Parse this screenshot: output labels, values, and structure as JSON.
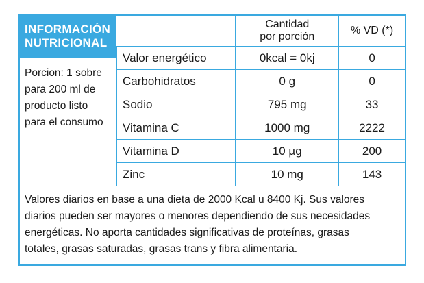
{
  "title": {
    "line1": "INFORMACIÓN",
    "line2": "NUTRICIONAL"
  },
  "portion": {
    "line1": "Porcion: 1 sobre",
    "line2": "para 200 ml de",
    "line3": "producto listo",
    "line4": "para el consumo"
  },
  "columns": {
    "quantity_line1": "Cantidad",
    "quantity_line2": "por porción",
    "vd": "% VD (*)"
  },
  "rows": [
    {
      "name": "Valor energético",
      "quantity": "0kcal = 0kj",
      "vd": "0"
    },
    {
      "name": "Carbohidratos",
      "quantity": "0 g",
      "vd": "0"
    },
    {
      "name": "Sodio",
      "quantity": "795 mg",
      "vd": "33"
    },
    {
      "name": "Vitamina C",
      "quantity": "1000 mg",
      "vd": "2222"
    },
    {
      "name": "Vitamina D",
      "quantity": "10 µg",
      "vd": "200"
    },
    {
      "name": "Zinc",
      "quantity": "10 mg",
      "vd": "143"
    }
  ],
  "footnote": {
    "line1": "Valores diarios en base a una dieta de 2000 Kcal u 8400 Kj. Sus valores",
    "line2": "diarios pueden ser mayores o menores dependiendo de sus necesidades",
    "line3": "energéticas. No aporta cantidades significativas de proteínas, grasas",
    "line4": "totales, grasas saturadas, grasas trans y fibra alimentaria."
  },
  "colors": {
    "accent": "#3aa9e0",
    "text": "#1a1a1a",
    "background": "#ffffff"
  }
}
